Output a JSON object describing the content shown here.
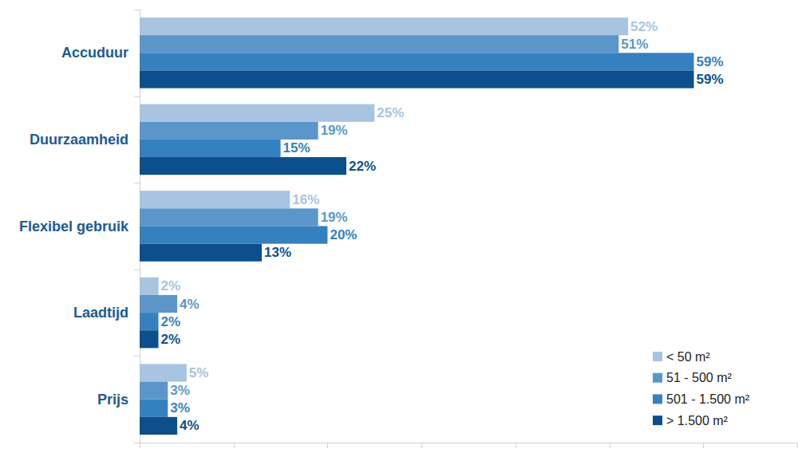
{
  "chart_data": {
    "type": "bar",
    "orientation": "horizontal",
    "categories": [
      "Accuduur",
      "Duurzaamheid",
      "Flexibel gebruik",
      "Laadtijd",
      "Prijs"
    ],
    "series": [
      {
        "name": "< 50 m²",
        "color": "#a8c4e0",
        "values": [
          52,
          25,
          16,
          2,
          5
        ],
        "value_labels": [
          "52%",
          "25%",
          "16%",
          "2%",
          "5%"
        ]
      },
      {
        "name": "51 - 500 m²",
        "color": "#5a96c9",
        "values": [
          51,
          19,
          19,
          4,
          3
        ],
        "value_labels": [
          "51%",
          "19%",
          "19%",
          "4%",
          "3%"
        ]
      },
      {
        "name": "501 - 1.500 m²",
        "color": "#3580bf",
        "values": [
          59,
          15,
          20,
          2,
          3
        ],
        "value_labels": [
          "59%",
          "15%",
          "20%",
          "2%",
          "3%"
        ]
      },
      {
        "name": "> 1.500 m²",
        "color": "#0c4f8c",
        "values": [
          59,
          22,
          13,
          2,
          4
        ],
        "value_labels": [
          "59%",
          "22%",
          "13%",
          "2%",
          "4%"
        ]
      }
    ],
    "xlim": [
      0,
      70
    ],
    "xticks": [
      0,
      10,
      20,
      30,
      40,
      50,
      60,
      70
    ],
    "grid": false,
    "tick_labels": "y",
    "data_labels": true,
    "legend": "lower right"
  }
}
